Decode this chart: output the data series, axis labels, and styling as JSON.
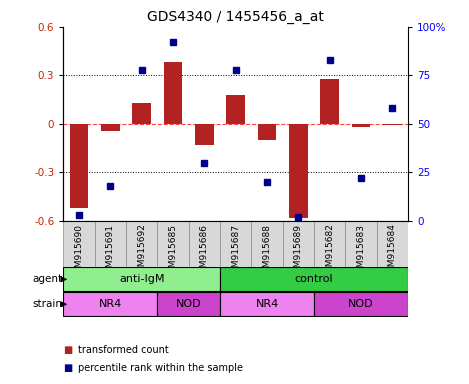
{
  "title": "GDS4340 / 1455456_a_at",
  "samples": [
    "GSM915690",
    "GSM915691",
    "GSM915692",
    "GSM915685",
    "GSM915686",
    "GSM915687",
    "GSM915688",
    "GSM915689",
    "GSM915682",
    "GSM915683",
    "GSM915684"
  ],
  "bar_values": [
    -0.52,
    -0.045,
    0.13,
    0.38,
    -0.13,
    0.18,
    -0.1,
    -0.58,
    0.28,
    -0.02,
    -0.01
  ],
  "scatter_values": [
    3,
    18,
    78,
    92,
    30,
    78,
    20,
    2,
    83,
    22,
    58
  ],
  "ylim_left": [
    -0.6,
    0.6
  ],
  "ylim_right": [
    0,
    100
  ],
  "yticks_left": [
    -0.6,
    -0.3,
    0,
    0.3,
    0.6
  ],
  "yticks_right": [
    0,
    25,
    50,
    75,
    100
  ],
  "ytick_labels_left": [
    "-0.6",
    "-0.3",
    "0",
    "0.3",
    "0.6"
  ],
  "ytick_labels_right": [
    "0",
    "25",
    "50",
    "75",
    "100%"
  ],
  "bar_color": "#B22222",
  "scatter_color": "#00008B",
  "dotted_line_y": [
    0.3,
    -0.3
  ],
  "zero_line_color": "#FF4444",
  "agent_groups": [
    {
      "label": "anti-IgM",
      "start": 0,
      "end": 5,
      "color": "#90EE90"
    },
    {
      "label": "control",
      "start": 5,
      "end": 11,
      "color": "#33CC44"
    }
  ],
  "strain_groups": [
    {
      "label": "NR4",
      "start": 0,
      "end": 3,
      "color": "#EE82EE"
    },
    {
      "label": "NOD",
      "start": 3,
      "end": 5,
      "color": "#CC44CC"
    },
    {
      "label": "NR4",
      "start": 5,
      "end": 8,
      "color": "#EE82EE"
    },
    {
      "label": "NOD",
      "start": 8,
      "end": 11,
      "color": "#CC44CC"
    }
  ],
  "legend_items": [
    {
      "label": "transformed count",
      "color": "#B22222"
    },
    {
      "label": "percentile rank within the sample",
      "color": "#00008B"
    }
  ],
  "title_fontsize": 10,
  "tick_fontsize": 7.5,
  "label_fontsize": 8,
  "sample_label_fontsize": 6.5,
  "annot_fontsize": 8
}
